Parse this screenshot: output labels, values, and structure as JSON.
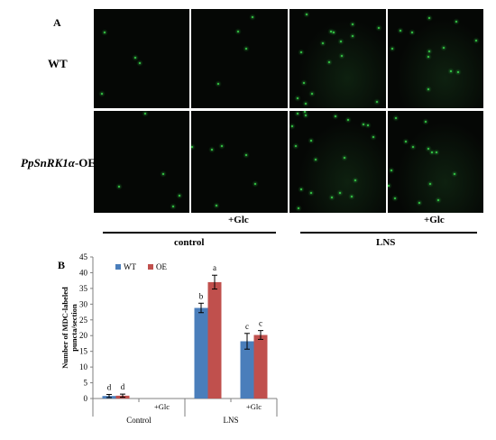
{
  "panel_a": {
    "label": "A",
    "rows": [
      "WT",
      "PpSnRK1α-OE"
    ],
    "cond_labels": {
      "glc_left": "+Glc",
      "glc_right": "+Glc",
      "control": "control",
      "lns": "LNS"
    },
    "image_colors": {
      "background": "#050705",
      "fluorescence": "#39d64a"
    }
  },
  "panel_b": {
    "label": "B"
  },
  "chart_data": {
    "type": "bar",
    "categories": [
      "Control",
      "+Glc",
      "LNS",
      "+Glc"
    ],
    "group_labels": [
      "Control",
      "LNS"
    ],
    "series": [
      {
        "name": "WT",
        "color": "#4a7ebb",
        "values": [
          0.8,
          0,
          28.8,
          18.2
        ],
        "errors": [
          0.5,
          0,
          1.5,
          2.5
        ],
        "letters": [
          "d",
          "",
          "b",
          "c"
        ]
      },
      {
        "name": "OE",
        "color": "#c0504d",
        "values": [
          0.9,
          0,
          37.0,
          20.2
        ],
        "errors": [
          0.5,
          0,
          2.2,
          1.4
        ],
        "letters": [
          "d",
          "",
          "a",
          "c"
        ]
      }
    ],
    "ylabel": "Number of MDC-labeled puncta/section",
    "ylim": [
      0,
      45
    ],
    "yticks": [
      "0",
      "5",
      "10",
      "15",
      "20",
      "25",
      "30",
      "35",
      "40",
      "45"
    ],
    "legend_position": "top-left",
    "grid": false
  }
}
